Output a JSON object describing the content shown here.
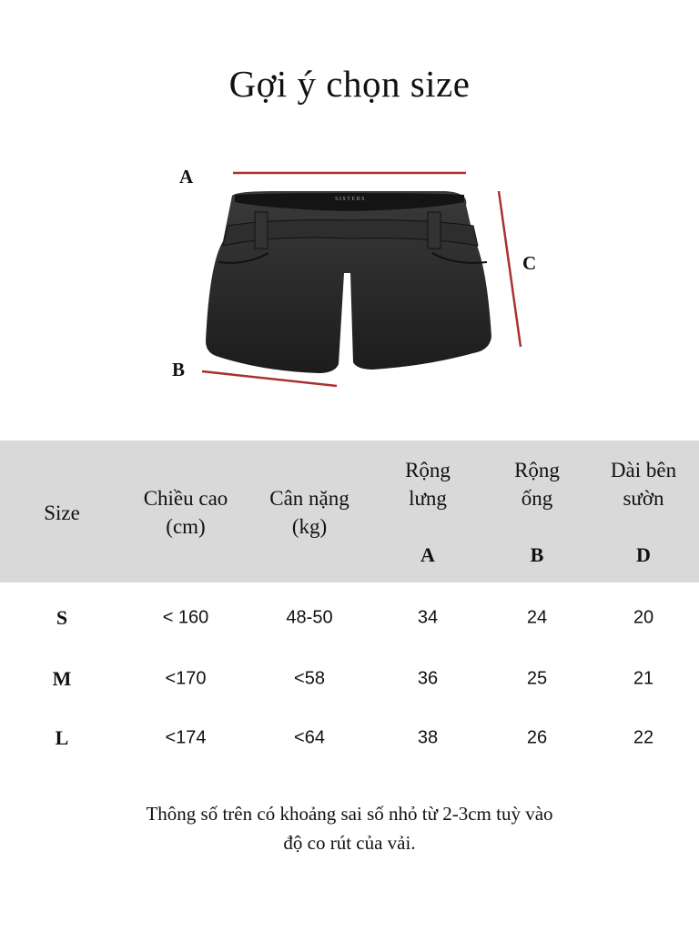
{
  "title": "Gợi ý chọn size",
  "diagram": {
    "labels": {
      "a": "A",
      "b": "B",
      "c": "C"
    },
    "brand_logo": "SISTERS",
    "line_color": "#a83232"
  },
  "table": {
    "header_bg": "#d9d9d9",
    "headers": [
      {
        "lines": [
          "Size"
        ],
        "sub": ""
      },
      {
        "lines": [
          "Chiều cao",
          "(cm)"
        ],
        "sub": ""
      },
      {
        "lines": [
          "Cân nặng",
          "(kg)"
        ],
        "sub": ""
      },
      {
        "lines": [
          "Rộng",
          "lưng"
        ],
        "sub": "A"
      },
      {
        "lines": [
          "Rộng",
          "ống"
        ],
        "sub": "B"
      },
      {
        "lines": [
          "Dài bên",
          "sườn"
        ],
        "sub": "D"
      }
    ],
    "rows": [
      [
        "S",
        "< 160",
        "48-50",
        "34",
        "24",
        "20"
      ],
      [
        "M",
        "<170",
        "<58",
        "36",
        "25",
        "21"
      ],
      [
        "L",
        "<174",
        "<64",
        "38",
        "26",
        "22"
      ]
    ]
  },
  "note": [
    "Thông số trên có khoảng sai số nhỏ từ 2-3cm tuỳ vào",
    "độ co rút của vải."
  ]
}
